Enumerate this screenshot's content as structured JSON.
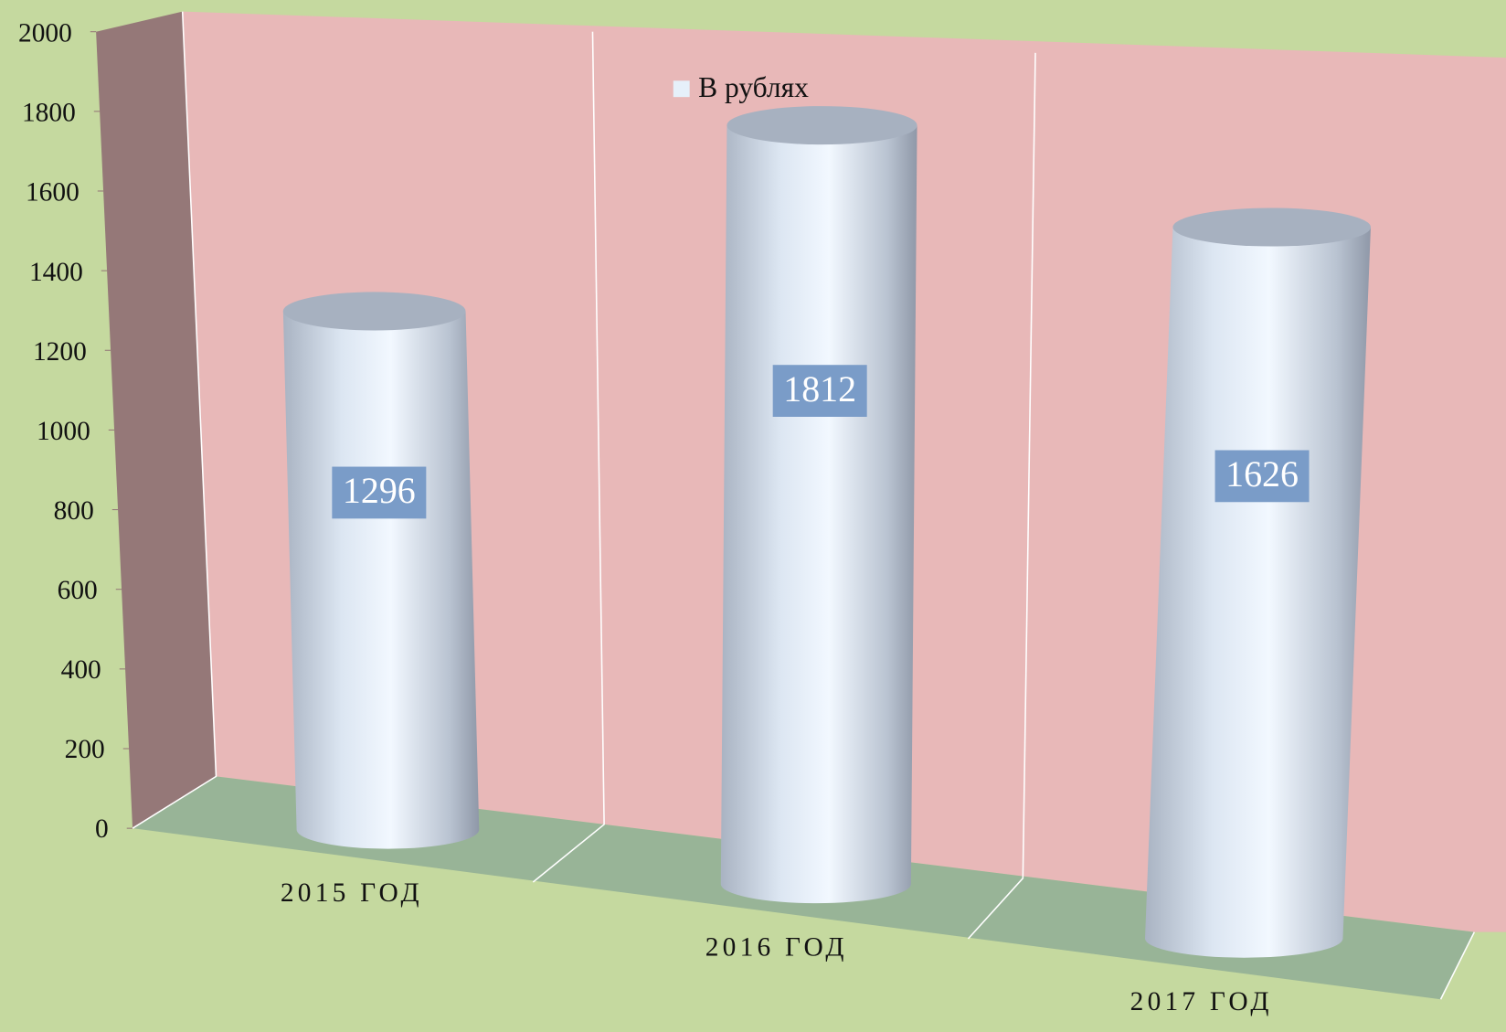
{
  "chart_data": {
    "type": "bar3d",
    "categories": [
      "2015 ГОД",
      "2016 ГОД",
      "2017 ГОД"
    ],
    "series": [
      {
        "name": "В рублях",
        "color": "#e6f0fa",
        "values": [
          1296,
          1812,
          1626
        ]
      }
    ],
    "ylim": [
      0,
      2000
    ],
    "yticks": [
      0,
      200,
      400,
      600,
      800,
      1000,
      1200,
      1400,
      1600,
      1800,
      2000
    ],
    "legend": "top"
  }
}
